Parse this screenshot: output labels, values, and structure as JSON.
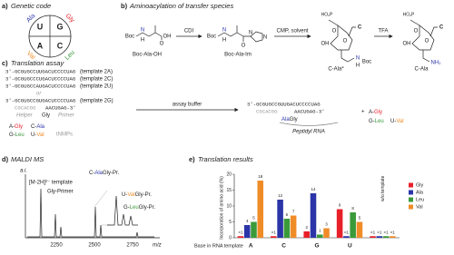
{
  "panel_a": {
    "letter": "a)",
    "title": "Genetic code",
    "bases": [
      "U",
      "G",
      "A",
      "C"
    ],
    "amino_acids": [
      "Ala",
      "Gly",
      "Val",
      "Leu"
    ]
  },
  "panel_b": {
    "letter": "b)",
    "title": "Aminoacylation of transfer species",
    "compounds": [
      "Boc-Ala-OH",
      "Boc-Ala-Im",
      "C-Ala*",
      "C-Ala"
    ],
    "reagents": [
      "CDI",
      "CMP, solvent",
      "TFA"
    ],
    "atoms": [
      "Boc",
      "N",
      "H",
      "OH",
      "O",
      "Boc",
      "N",
      "H",
      "N",
      "N",
      "O",
      "HO₂P",
      "O",
      "C",
      "O",
      "OH",
      "N",
      "Boc",
      "H",
      "HO₂P",
      "O",
      "C",
      "O",
      "OH",
      "NH₂"
    ]
  },
  "panel_c": {
    "letter": "c)",
    "title": "Translation assay",
    "templates": [
      {
        "seq": "3'-GCGUGCCUUGACUCCCCUAG",
        "label": "(template 2A)"
      },
      {
        "seq": "3'-GCGUGCCCUGACUCCCCUAG",
        "label": "(template 2C)"
      },
      {
        "seq": "3'-GCGUGCCAUGACUCCCCUAG",
        "label": "(template 2U)"
      }
    ],
    "or": "or",
    "template_g": {
      "seq": "3'-GCGUGCCGUGACUCCCCUAG",
      "label": "(template 2G)"
    },
    "helper_seq": "CGCACGG",
    "primer_seq": "AACUGAG-3'",
    "helper": "Helper",
    "gly": "Gly",
    "primer": "Primer",
    "tnmps": "tNMPs",
    "reagents": [
      [
        "A-",
        "Gly"
      ],
      [
        "C-",
        "Ala"
      ],
      [
        "G-",
        "Leu"
      ],
      [
        "U-",
        "Val"
      ]
    ],
    "assay_buffer": "assay buffer",
    "product_seq": "3'-GCGUGCCGUUGACUCCCCUAG",
    "product_helper": "CGCACGG",
    "product_primer": "AACUGAG-3'",
    "product_dipeptide": [
      "Ala",
      "Gly"
    ],
    "peptidyl": "Peptidyl RNA",
    "plus": "+",
    "leftover": [
      [
        "A-",
        "Gly"
      ],
      [
        "G-",
        "Leu"
      ],
      [
        "U-",
        "Val"
      ]
    ]
  },
  "panel_d": {
    "letter": "d)",
    "title": "MALDI MS",
    "y_label": "a.i.",
    "x_label": "m/z",
    "x_ticks": [
      2250,
      2500,
      2750
    ],
    "peak_labels": [
      "[M-2H]²⁻ template",
      "Gly-Primer"
    ],
    "product_labels": [
      [
        "C-",
        "Ala",
        "Gly-Pr."
      ],
      [
        "U-",
        "Val",
        "Gly-Pr."
      ],
      [
        "G-",
        "Leu",
        "Gly-Pr."
      ]
    ]
  },
  "panel_e": {
    "letter": "e)"
  },
  "chart_data": {
    "type": "bar",
    "title": "Translation results",
    "x_label": "Base in RNA template",
    "y_label": "Incorporation of amino acid (%)",
    "categories": [
      "A",
      "C",
      "G",
      "U",
      "w/o template"
    ],
    "series": [
      {
        "name": "Gly",
        "color": "#e8202a",
        "values": [
          0.5,
          0.5,
          2,
          9,
          0.5
        ],
        "value_labels": [
          "<1",
          "<1",
          "2",
          "9",
          "<1"
        ]
      },
      {
        "name": "Ala",
        "color": "#2b35a8",
        "values": [
          4,
          12,
          14,
          0.5,
          0.5
        ],
        "value_labels": [
          "4",
          "12",
          "14",
          "<1",
          "<1"
        ]
      },
      {
        "name": "Leu",
        "color": "#3a9a3a",
        "values": [
          5,
          6,
          1,
          8,
          0.5
        ],
        "value_labels": [
          "5",
          "6",
          "1",
          "8",
          "<1"
        ]
      },
      {
        "name": "Val",
        "color": "#f08c28",
        "values": [
          18,
          7,
          3,
          5,
          0.5
        ],
        "value_labels": [
          "18",
          "7",
          "3",
          "5",
          "<1"
        ]
      }
    ],
    "ylim": [
      0,
      20
    ],
    "yticks": [
      0,
      5,
      10,
      15,
      20
    ],
    "legend": "upper right"
  }
}
